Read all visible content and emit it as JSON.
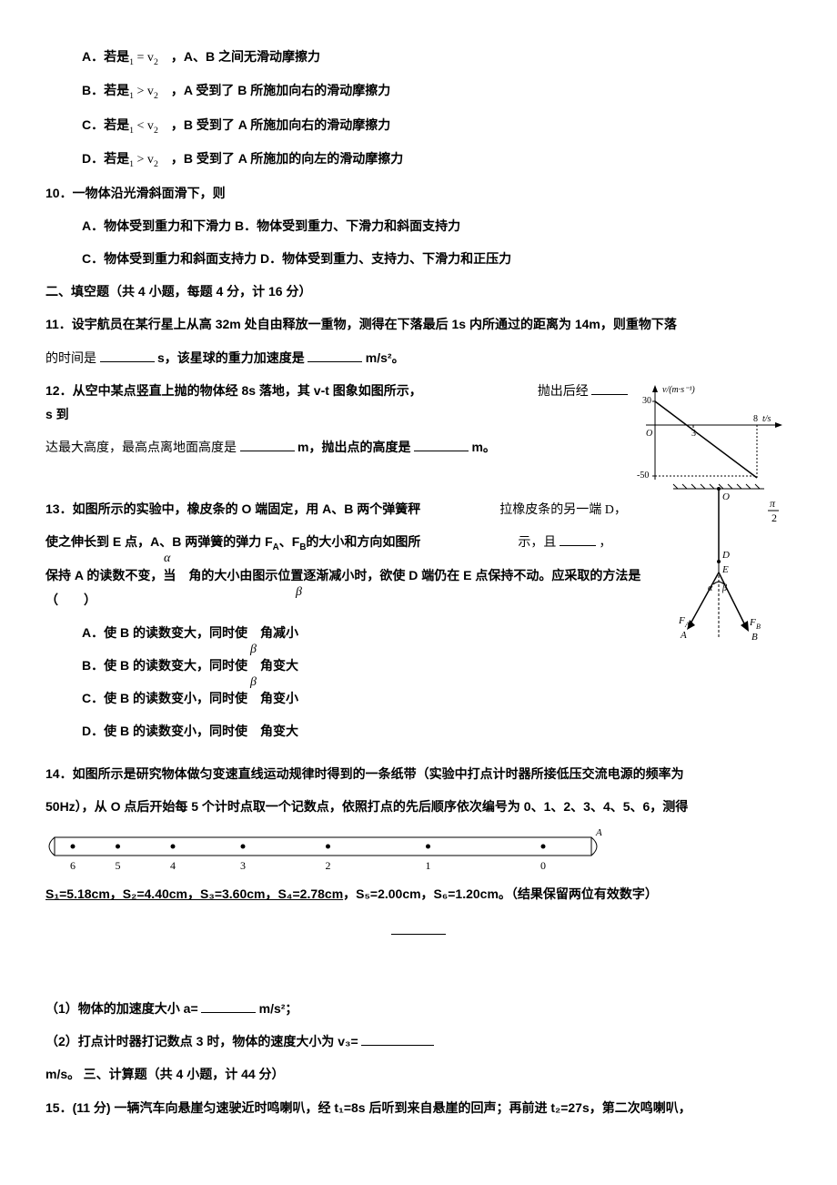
{
  "q9": {
    "optA_pre": "A．若是",
    "optA_mid": " = v",
    "optA_post": "　，A、B 之间无滑动摩擦力",
    "optB_pre": "B．若是",
    "optB_mid": " > v",
    "optB_post": "　，A 受到了 B 所施加向右的滑动摩擦力",
    "optC_pre": "C．若是",
    "optC_mid": " < v",
    "optC_post": "　，B 受到了 A 所施加向右的滑动摩擦力",
    "optD_pre": "D．若是",
    "optD_mid": " > v",
    "optD_post": "　，B 受到了 A 所施加的向左的滑动摩擦力",
    "sub1": "1",
    "sub2": "2"
  },
  "q10": {
    "stem": "10．一物体沿光滑斜面滑下，则",
    "optA": "A．物体受到重力和下滑力 ",
    "optB": "B．物体受到重力、下滑力和斜面支持力",
    "optC": "C．物体受到重力和斜面支持力 ",
    "optD": "D．物体受到重力、支持力、下滑力和正压力"
  },
  "sec2": "二、填空题（共 4 小题，每题 4 分，计 16 分）",
  "q11": {
    "line1": "11．设宇航员在某行星上从高 32m 处自由释放一重物，测得在下落最后 1s 内所通过的距离为 14m，则重物下落",
    "line2a": "的时间是",
    "line2b": "s，该星球的重力加速度是",
    "line2c": "m/s²。"
  },
  "q12": {
    "line1a": "12．从空中某点竖直上抛的物体经 8s 落地，其 v-t 图象如图所示，",
    "line1b": "抛出后经",
    "line1c": "s 到",
    "line2a": "达最大高度，最高点离地面高度是",
    "line2b": "m，抛出点的高度是",
    "line2c": "m。",
    "fig": {
      "ylabel": "v/(m·s⁻¹)",
      "xlabel": "t/s",
      "ytick": "30",
      "xtick1": "3",
      "xtick2": "8",
      "origin": "O",
      "ybottom": "-50",
      "axis_color": "#000",
      "line_color": "#000"
    }
  },
  "q13": {
    "line1": "13．如图所示的实验中，橡皮条的 O 端固定，用 A、B 两个弹簧秤",
    "line1b": "拉橡皮条的另一端 D，",
    "line2": "使之伸长到 E 点，A、B 两弹簧的弹力 F",
    "line2a": "A",
    "line2b": "、F",
    "line2c": "B",
    "line2d": "的大小和方向如图所",
    "line2e": "示，且",
    "line2f": "，",
    "line3": "保持 A 的读数不变，当　角的大小由图示位置逐渐减小时，欲使 D 端仍在 E 点保持不动。应采取的方法是（　　）",
    "alpha": "α",
    "beta": "β",
    "optA": "A．使 B 的读数变大，同时使　角减小",
    "optB": "B．使 B 的读数变大，同时使　角变大",
    "optC": "C．使 B 的读数变小，同时使　角变小",
    "optD": "D．使 B 的读数变小，同时使　角变大",
    "fig": {
      "O": "O",
      "D": "D",
      "E": "E",
      "FA": "F",
      "FAs": "A",
      "A": "A",
      "FB": "F",
      "FBs": "B",
      "B": "B",
      "alpha": "α",
      "beta": "β",
      "pi2": "π/2"
    }
  },
  "q14": {
    "line1": "14．如图所示是研究物体做匀变速直线运动规律时得到的一条纸带（实验中打点计时器所接低压交流电源的频率为",
    "line2": "50Hz），从 O 点后开始每 5 个计时点取一个记数点，依照打点的先后顺序依次编号为 0、1、2、3、4、5、6，测得",
    "line3a": "S₁=5.18cm，S₂=4.40cm，S₃=3.60cm，S₄=2.78cm",
    "line3b": "，S₅=2.00cm，S₆=1.20cm。（结果保留两位有效数字）",
    "tape": {
      "labels": [
        "6",
        "5",
        "4",
        "3",
        "2",
        "1",
        "0"
      ],
      "A": "A",
      "positions": [
        0,
        0.09,
        0.2,
        0.34,
        0.51,
        0.71,
        0.94
      ],
      "line_color": "#000"
    },
    "sub1": "（1）物体的加速度大小 a=",
    "sub1b": "m/s²；",
    "sub2a": "（2）打点计时器打记数点 3 时，物体的速度大小为 v₃=",
    "sub2b": "m/s。"
  },
  "sec3": "三、计算题（共 4 小题，计 44 分）",
  "q15": {
    "line1": "15．(11 分) 一辆汽车向悬崖匀速驶近时鸣喇叭，经 t₁=8s 后听到来自悬崖的回声；再前进 t₂=27s，第二次鸣喇叭，"
  },
  "colors": {
    "text": "#000000",
    "bg": "#ffffff"
  }
}
